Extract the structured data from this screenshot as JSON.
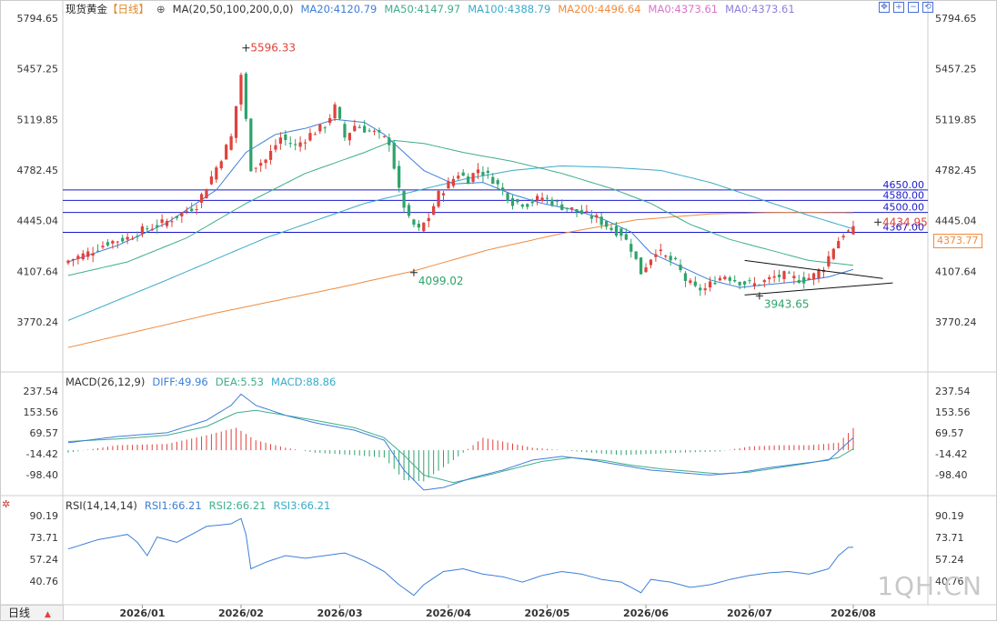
{
  "header": {
    "symbol": "现货黄金",
    "period_tag": "【日线】",
    "ma_label": "MA(20,50,100,200,0,0)",
    "ma20": "MA20:4120.79",
    "ma50": "MA50:4147.97",
    "ma100": "MA100:4388.79",
    "ma200": "MA200:4496.64",
    "ma0a": "MA0:4373.61",
    "ma0b": "MA0:4373.61"
  },
  "macd_header": {
    "label": "MACD(26,12,9)",
    "diff": "DIFF:49.96",
    "dea": "DEA:5.53",
    "macd": "MACD:88.86"
  },
  "rsi_header": {
    "label": "RSI(14,14,14)",
    "rsi1": "RSI1:66.21",
    "rsi2": "RSI2:66.21",
    "rsi3": "RSI3:66.21"
  },
  "period_button": "日线",
  "watermark": "1QH.CN",
  "current_price_tag": "4373.77",
  "colors": {
    "up": "#e0423c",
    "down": "#2fa36b",
    "ma20": "#3d7fd8",
    "ma50": "#3fae8d",
    "ma100": "#3aaac8",
    "ma200": "#f08b3e",
    "hline": "#1a1acc",
    "diff": "#3d7fd8",
    "dea": "#3fae8d"
  },
  "chart_data": {
    "type": "candlestick",
    "price_axis_ticks": [
      "5794.65",
      "5457.25",
      "5119.85",
      "4782.45",
      "4445.04",
      "4107.64",
      "3770.24"
    ],
    "price_axis_values": [
      5794.65,
      5457.25,
      5119.85,
      4782.45,
      4445.04,
      4107.64,
      3770.24
    ],
    "x_ticks": [
      "2026/01",
      "2026/02",
      "2026/03",
      "2026/04",
      "2026/05",
      "2026/06",
      "2026/07",
      "2026/08"
    ],
    "x_tick_index": [
      15,
      35,
      55,
      77,
      97,
      117,
      138,
      159
    ],
    "price_levels": [
      {
        "label": "4650.00",
        "value": 4650.0
      },
      {
        "label": "4580.00",
        "value": 4580.0
      },
      {
        "label": "4500.00",
        "value": 4500.0
      },
      {
        "label": "4367.00",
        "value": 4367.0
      }
    ],
    "annotations": [
      {
        "label": "5596.33",
        "index": 36,
        "value": 5596.33,
        "kind": "high"
      },
      {
        "label": "4099.02",
        "index": 70,
        "value": 4099.02,
        "kind": "low"
      },
      {
        "label": "3943.65",
        "index": 140,
        "value": 3943.65,
        "kind": "low"
      },
      {
        "label": "4434.95",
        "index": 164,
        "value": 4434.95,
        "kind": "high"
      }
    ],
    "triangle": {
      "upper": [
        [
          137,
          4180
        ],
        [
          165,
          4060
        ]
      ],
      "lower": [
        [
          137,
          3950
        ],
        [
          167,
          4030
        ]
      ]
    },
    "close_anchors": [
      [
        0,
        4180
      ],
      [
        4,
        4230
      ],
      [
        8,
        4300
      ],
      [
        12,
        4330
      ],
      [
        15,
        4380
      ],
      [
        20,
        4440
      ],
      [
        26,
        4550
      ],
      [
        30,
        4800
      ],
      [
        33,
        5000
      ],
      [
        35,
        5420
      ],
      [
        37,
        4800
      ],
      [
        40,
        4850
      ],
      [
        43,
        5000
      ],
      [
        46,
        4940
      ],
      [
        49,
        5020
      ],
      [
        52,
        5080
      ],
      [
        54,
        5200
      ],
      [
        56,
        5000
      ],
      [
        58,
        5080
      ],
      [
        62,
        5030
      ],
      [
        65,
        4970
      ],
      [
        67,
        4640
      ],
      [
        69,
        4450
      ],
      [
        71,
        4380
      ],
      [
        73,
        4470
      ],
      [
        75,
        4620
      ],
      [
        77,
        4690
      ],
      [
        79,
        4760
      ],
      [
        81,
        4720
      ],
      [
        83,
        4790
      ],
      [
        86,
        4720
      ],
      [
        88,
        4640
      ],
      [
        90,
        4570
      ],
      [
        93,
        4560
      ],
      [
        96,
        4600
      ],
      [
        98,
        4570
      ],
      [
        100,
        4540
      ],
      [
        102,
        4520
      ],
      [
        105,
        4480
      ],
      [
        107,
        4460
      ],
      [
        110,
        4390
      ],
      [
        112,
        4360
      ],
      [
        114,
        4260
      ],
      [
        116,
        4100
      ],
      [
        119,
        4250
      ],
      [
        121,
        4200
      ],
      [
        123,
        4160
      ],
      [
        125,
        4050
      ],
      [
        127,
        3990
      ],
      [
        129,
        3990
      ],
      [
        131,
        4050
      ],
      [
        133,
        4080
      ],
      [
        135,
        4050
      ],
      [
        137,
        4030
      ],
      [
        139,
        4020
      ],
      [
        141,
        4040
      ],
      [
        143,
        4070
      ],
      [
        145,
        4080
      ],
      [
        147,
        4060
      ],
      [
        149,
        4050
      ],
      [
        151,
        4080
      ],
      [
        153,
        4140
      ],
      [
        155,
        4270
      ],
      [
        157,
        4360
      ],
      [
        159,
        4380
      ]
    ],
    "ma20_anchors": [
      [
        0,
        4170
      ],
      [
        10,
        4280
      ],
      [
        20,
        4430
      ],
      [
        30,
        4650
      ],
      [
        36,
        4900
      ],
      [
        42,
        5020
      ],
      [
        48,
        5060
      ],
      [
        54,
        5120
      ],
      [
        60,
        5100
      ],
      [
        64,
        5020
      ],
      [
        68,
        4900
      ],
      [
        72,
        4780
      ],
      [
        78,
        4690
      ],
      [
        84,
        4700
      ],
      [
        90,
        4620
      ],
      [
        96,
        4560
      ],
      [
        102,
        4520
      ],
      [
        108,
        4460
      ],
      [
        114,
        4370
      ],
      [
        118,
        4230
      ],
      [
        124,
        4140
      ],
      [
        130,
        4050
      ],
      [
        136,
        4000
      ],
      [
        142,
        4020
      ],
      [
        148,
        4040
      ],
      [
        154,
        4070
      ],
      [
        159,
        4120
      ]
    ],
    "ma50_anchors": [
      [
        0,
        4080
      ],
      [
        12,
        4170
      ],
      [
        24,
        4330
      ],
      [
        36,
        4560
      ],
      [
        48,
        4760
      ],
      [
        60,
        4900
      ],
      [
        66,
        4980
      ],
      [
        72,
        4960
      ],
      [
        80,
        4900
      ],
      [
        90,
        4840
      ],
      [
        100,
        4760
      ],
      [
        110,
        4660
      ],
      [
        118,
        4560
      ],
      [
        126,
        4420
      ],
      [
        134,
        4320
      ],
      [
        142,
        4250
      ],
      [
        150,
        4180
      ],
      [
        159,
        4148
      ]
    ],
    "ma100_anchors": [
      [
        0,
        3780
      ],
      [
        20,
        4050
      ],
      [
        40,
        4330
      ],
      [
        60,
        4560
      ],
      [
        70,
        4640
      ],
      [
        80,
        4720
      ],
      [
        90,
        4780
      ],
      [
        100,
        4810
      ],
      [
        110,
        4800
      ],
      [
        120,
        4780
      ],
      [
        130,
        4700
      ],
      [
        140,
        4590
      ],
      [
        150,
        4480
      ],
      [
        159,
        4390
      ]
    ],
    "ma200_anchors": [
      [
        0,
        3600
      ],
      [
        30,
        3830
      ],
      [
        55,
        4000
      ],
      [
        70,
        4110
      ],
      [
        85,
        4250
      ],
      [
        100,
        4360
      ],
      [
        115,
        4450
      ],
      [
        130,
        4490
      ],
      [
        145,
        4500
      ],
      [
        159,
        4497
      ]
    ],
    "macd": {
      "axis_ticks": [
        "237.54",
        "153.56",
        "69.57",
        "-14.42",
        "-98.40"
      ],
      "axis_values": [
        237.54,
        153.56,
        69.57,
        -14.42,
        -98.4
      ],
      "diff_anchors": [
        [
          0,
          30
        ],
        [
          10,
          55
        ],
        [
          20,
          70
        ],
        [
          28,
          120
        ],
        [
          33,
          180
        ],
        [
          35,
          225
        ],
        [
          38,
          180
        ],
        [
          44,
          140
        ],
        [
          50,
          110
        ],
        [
          58,
          80
        ],
        [
          64,
          40
        ],
        [
          68,
          -80
        ],
        [
          72,
          -160
        ],
        [
          76,
          -150
        ],
        [
          82,
          -110
        ],
        [
          88,
          -80
        ],
        [
          94,
          -40
        ],
        [
          100,
          -25
        ],
        [
          106,
          -40
        ],
        [
          112,
          -60
        ],
        [
          118,
          -80
        ],
        [
          124,
          -90
        ],
        [
          130,
          -100
        ],
        [
          136,
          -90
        ],
        [
          142,
          -70
        ],
        [
          148,
          -55
        ],
        [
          154,
          -40
        ],
        [
          159,
          49.96
        ]
      ],
      "dea_anchors": [
        [
          0,
          35
        ],
        [
          10,
          45
        ],
        [
          20,
          60
        ],
        [
          28,
          95
        ],
        [
          34,
          150
        ],
        [
          38,
          160
        ],
        [
          44,
          140
        ],
        [
          50,
          120
        ],
        [
          58,
          90
        ],
        [
          64,
          50
        ],
        [
          68,
          -20
        ],
        [
          72,
          -100
        ],
        [
          78,
          -130
        ],
        [
          84,
          -105
        ],
        [
          90,
          -75
        ],
        [
          96,
          -45
        ],
        [
          102,
          -30
        ],
        [
          108,
          -40
        ],
        [
          114,
          -60
        ],
        [
          120,
          -75
        ],
        [
          126,
          -85
        ],
        [
          132,
          -95
        ],
        [
          138,
          -88
        ],
        [
          144,
          -70
        ],
        [
          150,
          -52
        ],
        [
          156,
          -30
        ],
        [
          159,
          5.53
        ]
      ],
      "hist_anchors": [
        [
          0,
          -10
        ],
        [
          10,
          20
        ],
        [
          20,
          25
        ],
        [
          28,
          60
        ],
        [
          34,
          90
        ],
        [
          38,
          40
        ],
        [
          44,
          10
        ],
        [
          50,
          -10
        ],
        [
          58,
          -20
        ],
        [
          64,
          -30
        ],
        [
          68,
          -120
        ],
        [
          72,
          -125
        ],
        [
          78,
          -40
        ],
        [
          84,
          50
        ],
        [
          88,
          35
        ],
        [
          94,
          10
        ],
        [
          100,
          0
        ],
        [
          106,
          -10
        ],
        [
          112,
          -20
        ],
        [
          118,
          -15
        ],
        [
          124,
          -10
        ],
        [
          132,
          -5
        ],
        [
          138,
          15
        ],
        [
          144,
          20
        ],
        [
          150,
          20
        ],
        [
          156,
          30
        ],
        [
          159,
          88.86
        ]
      ]
    },
    "rsi": {
      "axis_ticks": [
        "90.19",
        "73.71",
        "57.24",
        "40.76"
      ],
      "axis_values": [
        90.19,
        73.71,
        57.24,
        40.76
      ],
      "anchors": [
        [
          0,
          65
        ],
        [
          6,
          72
        ],
        [
          12,
          76
        ],
        [
          14,
          70
        ],
        [
          16,
          60
        ],
        [
          18,
          74
        ],
        [
          22,
          70
        ],
        [
          28,
          82
        ],
        [
          33,
          84
        ],
        [
          35,
          88
        ],
        [
          36,
          76
        ],
        [
          37,
          50
        ],
        [
          40,
          55
        ],
        [
          44,
          60
        ],
        [
          48,
          58
        ],
        [
          52,
          60
        ],
        [
          56,
          62
        ],
        [
          60,
          56
        ],
        [
          64,
          48
        ],
        [
          67,
          38
        ],
        [
          70,
          30
        ],
        [
          72,
          38
        ],
        [
          76,
          48
        ],
        [
          80,
          50
        ],
        [
          84,
          46
        ],
        [
          88,
          44
        ],
        [
          92,
          40
        ],
        [
          96,
          45
        ],
        [
          100,
          48
        ],
        [
          104,
          46
        ],
        [
          108,
          42
        ],
        [
          112,
          40
        ],
        [
          116,
          32
        ],
        [
          118,
          42
        ],
        [
          122,
          40
        ],
        [
          126,
          36
        ],
        [
          130,
          38
        ],
        [
          134,
          42
        ],
        [
          138,
          45
        ],
        [
          142,
          47
        ],
        [
          146,
          48
        ],
        [
          150,
          46
        ],
        [
          154,
          50
        ],
        [
          156,
          60
        ],
        [
          158,
          66.21
        ],
        [
          159,
          66.21
        ]
      ]
    }
  }
}
